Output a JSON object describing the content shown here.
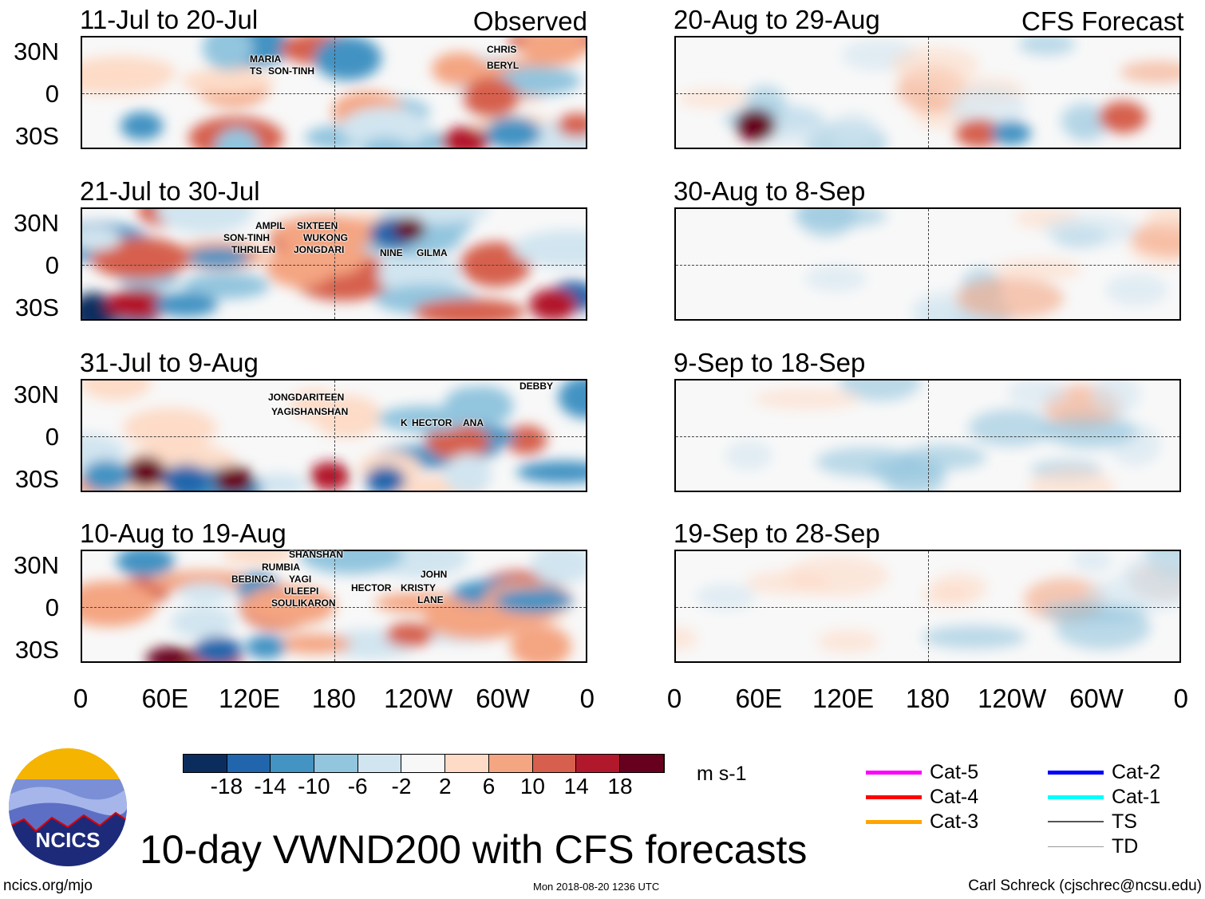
{
  "panels": [
    {
      "title": "11-Jul to 20-Jul",
      "label": "Observed",
      "storms": [
        "MARIA",
        "TS",
        "SON-TINH",
        "CHRIS",
        "BERYL"
      ]
    },
    {
      "title": "20-Aug to 29-Aug",
      "label": "CFS Forecast",
      "storms": []
    },
    {
      "title": "21-Jul to 30-Jul",
      "storms": [
        "AMPIL",
        "SIXTEEN",
        "SON-TINH",
        "WUKONG",
        "TIHRILEN",
        "JONGDARI",
        "NINE",
        "GILMA"
      ]
    },
    {
      "title": "30-Aug to 8-Sep",
      "storms": []
    },
    {
      "title": "31-Jul to 9-Aug",
      "storms": [
        "JONGDARITEEN",
        "YAGISHANSHAN",
        "K",
        "HECTOR",
        "ANA",
        "DEBBY"
      ]
    },
    {
      "title": "9-Sep to 18-Sep",
      "storms": []
    },
    {
      "title": "10-Aug to 19-Aug",
      "storms": [
        "SHANSHAN",
        "RUMBIA",
        "BEBINCA",
        "YAGI",
        "ULEEPI",
        "SOULIKARON",
        "JOHN",
        "HECTOR",
        "KRISTY",
        "LANE"
      ]
    },
    {
      "title": "19-Sep to 28-Sep",
      "storms": []
    }
  ],
  "lat_labels": [
    "30N",
    "0",
    "30S"
  ],
  "lon_labels": [
    "0",
    "60E",
    "120E",
    "180",
    "120W",
    "60W",
    "0"
  ],
  "colorbar": {
    "ticks": [
      "-18",
      "-14",
      "-10",
      "-6",
      "-2",
      "2",
      "6",
      "10",
      "14",
      "18"
    ],
    "units": "m s-1",
    "colors": [
      "#0b2d5e",
      "#2166ac",
      "#4393c3",
      "#92c5de",
      "#d1e5f0",
      "#f7f7f7",
      "#fddbc7",
      "#f4a582",
      "#d6604d",
      "#b2182b",
      "#67001f"
    ]
  },
  "legend": [
    {
      "label": "Cat-5",
      "color": "#ff00ff"
    },
    {
      "label": "Cat-4",
      "color": "#ff0000"
    },
    {
      "label": "Cat-3",
      "color": "#ffa500"
    },
    {
      "label": "Cat-2",
      "color": "#0000ff"
    },
    {
      "label": "Cat-1",
      "color": "#00ffff"
    },
    {
      "label": "TS",
      "color": "#555555"
    },
    {
      "label": "TD",
      "color": "#999999"
    }
  ],
  "logo_text": "NCICS",
  "title": "10-day VWND200 with CFS forecasts",
  "footer": {
    "left": "ncics.org/mjo",
    "center": "Mon 2018-08-20 1236 UTC",
    "right": "Carl Schreck (cjschrec@ncsu.edu)"
  }
}
